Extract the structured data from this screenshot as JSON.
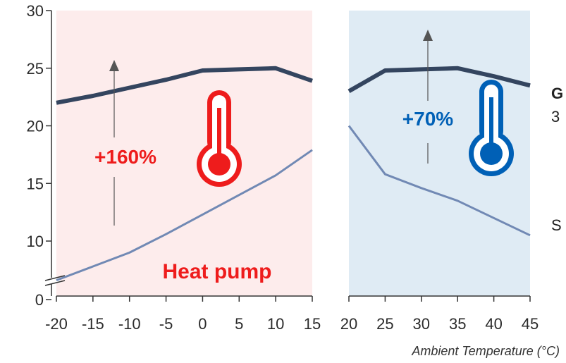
{
  "chart_data": {
    "type": "line",
    "xlabel": "Ambient Temperature (°C)",
    "ylim": [
      0,
      30
    ],
    "yticks": [
      "0",
      "10",
      "15",
      "20",
      "25",
      "30"
    ],
    "y_axis_break": true,
    "panels": [
      {
        "mode": "Heat pump",
        "background": "#fdecec",
        "accent": "#ee1c1c",
        "increase_label": "+160%",
        "icon": "thermometer-hot-icon",
        "x": [
          -20,
          -15,
          -10,
          -5,
          0,
          5,
          10,
          15
        ],
        "xticks": [
          "-20",
          "-15",
          "-10",
          "-5",
          "0",
          "5",
          "10",
          "15"
        ],
        "series": [
          {
            "color": "#34455f",
            "values": [
              22.0,
              22.6,
              23.3,
              24.0,
              24.8,
              24.9,
              25.0,
              23.9
            ]
          },
          {
            "color": "#7189b4",
            "values": [
              6.6,
              7.8,
              9.0,
              10.6,
              12.3,
              14.0,
              15.7,
              17.9
            ]
          }
        ]
      },
      {
        "mode": "",
        "background": "#dfebf4",
        "accent": "#0060b6",
        "increase_label": "+70%",
        "icon": "thermometer-cold-icon",
        "x": [
          20,
          25,
          30,
          35,
          40,
          45
        ],
        "xticks": [
          "20",
          "25",
          "30",
          "35",
          "40",
          "45"
        ],
        "series": [
          {
            "color": "#34455f",
            "values": [
              23.0,
              24.8,
              24.9,
              25.0,
              24.3,
              23.5
            ]
          },
          {
            "color": "#7189b4",
            "values": [
              20.0,
              15.8,
              14.6,
              13.5,
              12.0,
              10.5
            ]
          }
        ]
      }
    ],
    "side_labels": [
      "G",
      "3",
      "S"
    ]
  }
}
